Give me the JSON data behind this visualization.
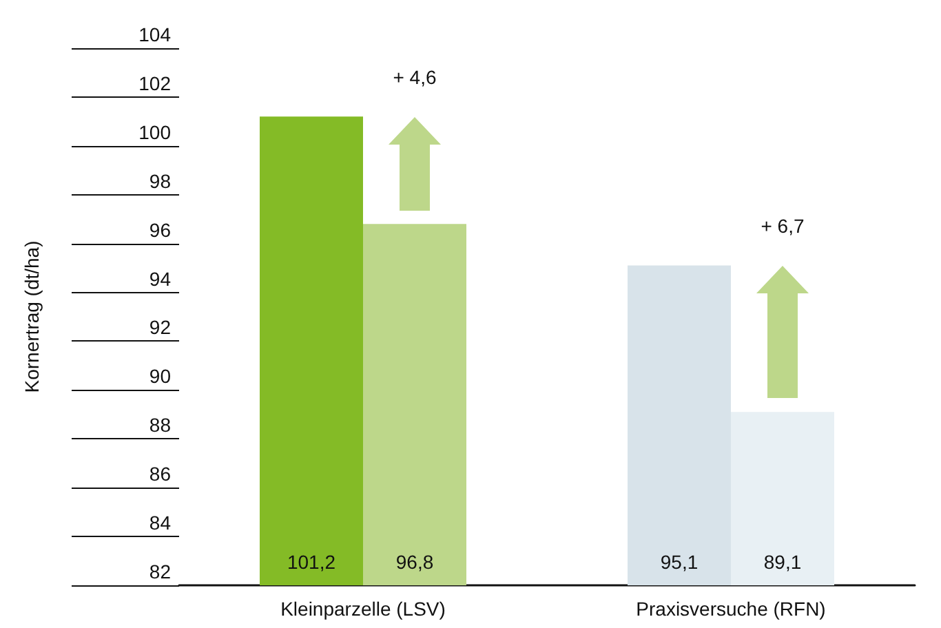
{
  "chart_data": {
    "type": "bar",
    "ylabel": "Kornertrag (dt/ha)",
    "categories": [
      "Kleinparzelle (LSV)",
      "Praxisversuche (RFN)"
    ],
    "series": [
      {
        "colors": [
          "#84bb26",
          "#d8e3ea"
        ],
        "values": [
          101.2,
          95.1
        ],
        "value_labels": [
          "101,2",
          "95,1"
        ]
      },
      {
        "colors": [
          "#bdd78a",
          "#e8f0f4"
        ],
        "values": [
          96.8,
          89.1
        ],
        "value_labels": [
          "96,8",
          "89,1"
        ]
      }
    ],
    "ylim": [
      82,
      104
    ],
    "yticks": [
      82,
      84,
      86,
      88,
      90,
      92,
      94,
      96,
      98,
      100,
      102,
      104
    ],
    "grid": false,
    "annotations": [
      "+ 4,6",
      "+ 6,7"
    ]
  }
}
